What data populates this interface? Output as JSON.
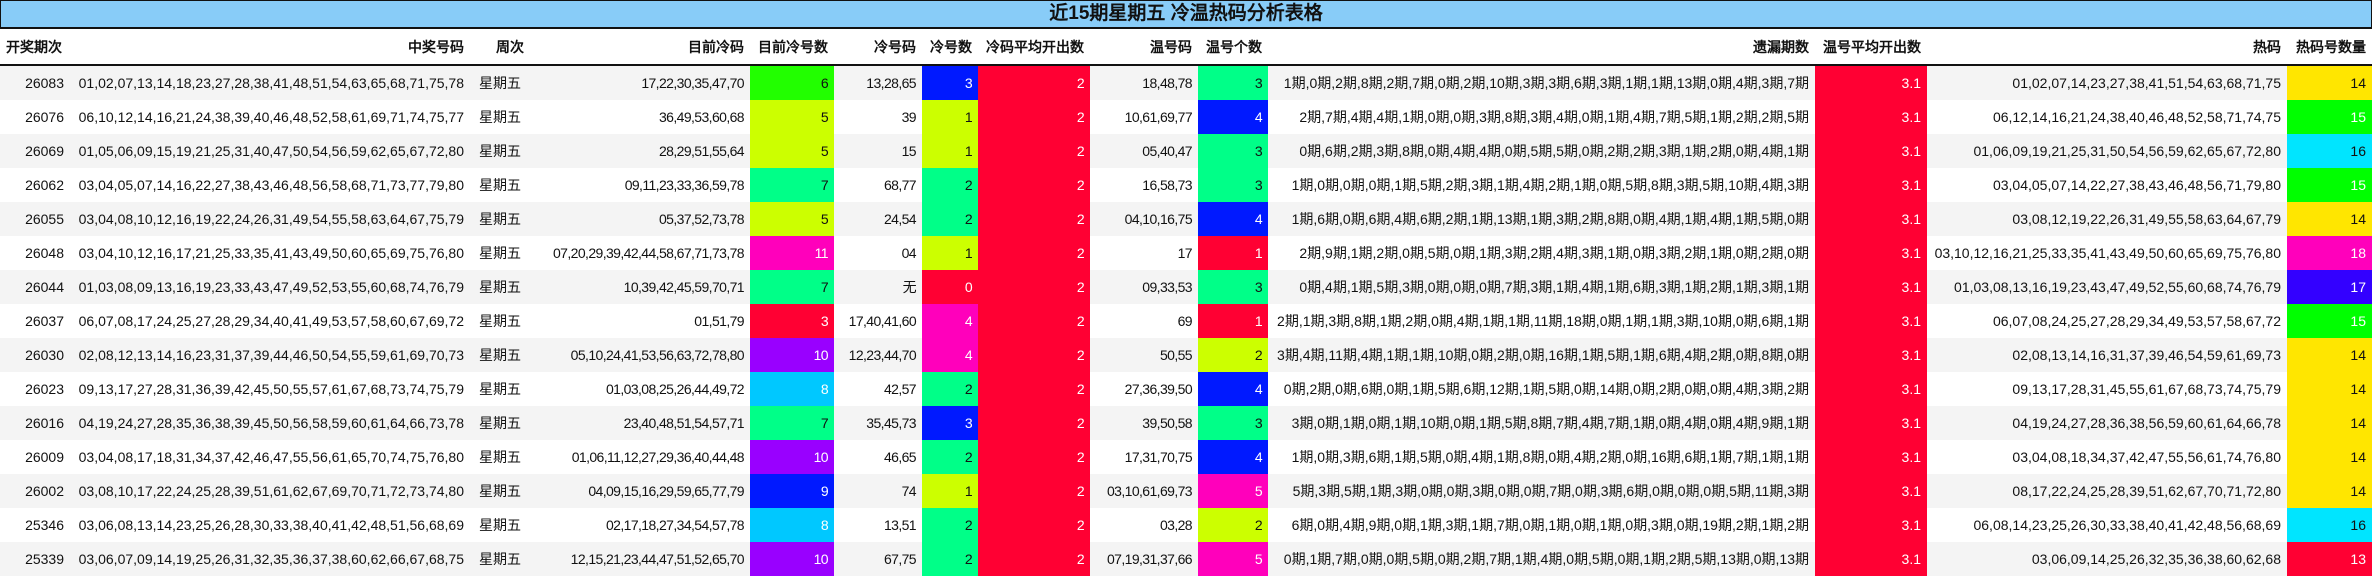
{
  "title": "近15期星期五 冷温热码分析表格",
  "headers": [
    "开奖期次",
    "中奖号码",
    "周次",
    "目前冷码",
    "目前冷号数",
    "冷号码",
    "冷号数",
    "冷码平均开出数",
    "温号码",
    "温号个数",
    "遗漏期数",
    "温号平均开出数",
    "热码",
    "热码号数量"
  ],
  "colors": {
    "cold_now_count": {
      "3": "#ff0033",
      "5": "#ccff00",
      "6": "#22ff00",
      "7": "#00ff88",
      "8": "#00c8ff",
      "9": "#0019ff",
      "10": "#9900ff",
      "11": "#ff00bb"
    },
    "cold_count": {
      "0": "#ff0033",
      "1": "#ccff00",
      "2": "#00ff88",
      "3": "#0019ff",
      "4": "#ff00bb"
    },
    "cold_avg": "#ff0033",
    "warm_count": {
      "1": "#ff0033",
      "2": "#ccff00",
      "3": "#00ff88",
      "4": "#0019ff",
      "5": "#ff00bb"
    },
    "warm_avg": "#ff0033",
    "hot_count": {
      "13": "#ff0033",
      "14": "#ffe600",
      "15": "#00ff00",
      "16": "#00e5ff",
      "17": "#3300ff",
      "18": "#ff00bb"
    },
    "title_bg": "#88ccf8"
  },
  "rows": [
    {
      "issue": "26083",
      "numbers": "01,02,07,13,14,18,23,27,28,38,41,48,51,54,63,65,68,71,75,78",
      "weekday": "星期五",
      "cold_now": "17,22,30,35,47,70",
      "cold_now_count": "6",
      "cold": "13,28,65",
      "cold_count": "3",
      "cold_avg": "2",
      "warm": "18,48,78",
      "warm_count": "3",
      "missing": "1期,0期,2期,8期,2期,7期,0期,2期,10期,3期,3期,6期,3期,1期,1期,13期,0期,4期,3期,7期",
      "warm_avg": "3.1",
      "hot": "01,02,07,14,23,27,38,41,51,54,63,68,71,75",
      "hot_count": "14"
    },
    {
      "issue": "26076",
      "numbers": "06,10,12,14,16,21,24,38,39,40,46,48,52,58,61,69,71,74,75,77",
      "weekday": "星期五",
      "cold_now": "36,49,53,60,68",
      "cold_now_count": "5",
      "cold": "39",
      "cold_count": "1",
      "cold_avg": "2",
      "warm": "10,61,69,77",
      "warm_count": "4",
      "missing": "2期,7期,4期,4期,1期,0期,0期,3期,8期,3期,4期,0期,1期,4期,7期,5期,1期,2期,2期,5期",
      "warm_avg": "3.1",
      "hot": "06,12,14,16,21,24,38,40,46,48,52,58,71,74,75",
      "hot_count": "15"
    },
    {
      "issue": "26069",
      "numbers": "01,05,06,09,15,19,21,25,31,40,47,50,54,56,59,62,65,67,72,80",
      "weekday": "星期五",
      "cold_now": "28,29,51,55,64",
      "cold_now_count": "5",
      "cold": "15",
      "cold_count": "1",
      "cold_avg": "2",
      "warm": "05,40,47",
      "warm_count": "3",
      "missing": "0期,6期,2期,3期,8期,0期,4期,4期,0期,5期,5期,0期,2期,2期,3期,1期,2期,0期,4期,1期",
      "warm_avg": "3.1",
      "hot": "01,06,09,19,21,25,31,50,54,56,59,62,65,67,72,80",
      "hot_count": "16"
    },
    {
      "issue": "26062",
      "numbers": "03,04,05,07,14,16,22,27,38,43,46,48,56,58,68,71,73,77,79,80",
      "weekday": "星期五",
      "cold_now": "09,11,23,33,36,59,78",
      "cold_now_count": "7",
      "cold": "68,77",
      "cold_count": "2",
      "cold_avg": "2",
      "warm": "16,58,73",
      "warm_count": "3",
      "missing": "1期,0期,0期,0期,1期,5期,2期,3期,1期,4期,2期,1期,0期,5期,8期,3期,5期,10期,4期,3期",
      "warm_avg": "3.1",
      "hot": "03,04,05,07,14,22,27,38,43,46,48,56,71,79,80",
      "hot_count": "15"
    },
    {
      "issue": "26055",
      "numbers": "03,04,08,10,12,16,19,22,24,26,31,49,54,55,58,63,64,67,75,79",
      "weekday": "星期五",
      "cold_now": "05,37,52,73,78",
      "cold_now_count": "5",
      "cold": "24,54",
      "cold_count": "2",
      "cold_avg": "2",
      "warm": "04,10,16,75",
      "warm_count": "4",
      "missing": "1期,6期,0期,6期,4期,6期,2期,1期,13期,1期,3期,2期,8期,0期,4期,1期,4期,1期,5期,0期",
      "warm_avg": "3.1",
      "hot": "03,08,12,19,22,26,31,49,55,58,63,64,67,79",
      "hot_count": "14"
    },
    {
      "issue": "26048",
      "numbers": "03,04,10,12,16,17,21,25,33,35,41,43,49,50,60,65,69,75,76,80",
      "weekday": "星期五",
      "cold_now": "07,20,29,39,42,44,58,67,71,73,78",
      "cold_now_count": "11",
      "cold": "04",
      "cold_count": "1",
      "cold_avg": "2",
      "warm": "17",
      "warm_count": "1",
      "missing": "2期,9期,1期,2期,0期,5期,0期,1期,3期,2期,4期,3期,1期,0期,3期,2期,1期,0期,2期,0期",
      "warm_avg": "3.1",
      "hot": "03,10,12,16,21,25,33,35,41,43,49,50,60,65,69,75,76,80",
      "hot_count": "18"
    },
    {
      "issue": "26044",
      "numbers": "01,03,08,09,13,16,19,23,33,43,47,49,52,53,55,60,68,74,76,79",
      "weekday": "星期五",
      "cold_now": "10,39,42,45,59,70,71",
      "cold_now_count": "7",
      "cold": "无",
      "cold_count": "0",
      "cold_avg": "2",
      "warm": "09,33,53",
      "warm_count": "3",
      "missing": "0期,4期,1期,5期,3期,0期,0期,0期,7期,3期,1期,4期,1期,6期,3期,1期,2期,1期,3期,1期",
      "warm_avg": "3.1",
      "hot": "01,03,08,13,16,19,23,43,47,49,52,55,60,68,74,76,79",
      "hot_count": "17"
    },
    {
      "issue": "26037",
      "numbers": "06,07,08,17,24,25,27,28,29,34,40,41,49,53,57,58,60,67,69,72",
      "weekday": "星期五",
      "cold_now": "01,51,79",
      "cold_now_count": "3",
      "cold": "17,40,41,60",
      "cold_count": "4",
      "cold_avg": "2",
      "warm": "69",
      "warm_count": "1",
      "missing": "2期,1期,3期,8期,1期,2期,0期,4期,1期,1期,11期,18期,0期,1期,1期,3期,10期,0期,6期,1期",
      "warm_avg": "3.1",
      "hot": "06,07,08,24,25,27,28,29,34,49,53,57,58,67,72",
      "hot_count": "15"
    },
    {
      "issue": "26030",
      "numbers": "02,08,12,13,14,16,23,31,37,39,44,46,50,54,55,59,61,69,70,73",
      "weekday": "星期五",
      "cold_now": "05,10,24,41,53,56,63,72,78,80",
      "cold_now_count": "10",
      "cold": "12,23,44,70",
      "cold_count": "4",
      "cold_avg": "2",
      "warm": "50,55",
      "warm_count": "2",
      "missing": "3期,4期,11期,4期,1期,1期,10期,0期,2期,0期,16期,1期,5期,1期,6期,4期,2期,0期,8期,0期",
      "warm_avg": "3.1",
      "hot": "02,08,13,14,16,31,37,39,46,54,59,61,69,73",
      "hot_count": "14"
    },
    {
      "issue": "26023",
      "numbers": "09,13,17,27,28,31,36,39,42,45,50,55,57,61,67,68,73,74,75,79",
      "weekday": "星期五",
      "cold_now": "01,03,08,25,26,44,49,72",
      "cold_now_count": "8",
      "cold": "42,57",
      "cold_count": "2",
      "cold_avg": "2",
      "warm": "27,36,39,50",
      "warm_count": "4",
      "missing": "0期,2期,0期,6期,0期,1期,5期,6期,12期,1期,5期,0期,14期,0期,2期,0期,0期,4期,3期,2期",
      "warm_avg": "3.1",
      "hot": "09,13,17,28,31,45,55,61,67,68,73,74,75,79",
      "hot_count": "14"
    },
    {
      "issue": "26016",
      "numbers": "04,19,24,27,28,35,36,38,39,45,50,56,58,59,60,61,64,66,73,78",
      "weekday": "星期五",
      "cold_now": "23,40,48,51,54,57,71",
      "cold_now_count": "7",
      "cold": "35,45,73",
      "cold_count": "3",
      "cold_avg": "2",
      "warm": "39,50,58",
      "warm_count": "3",
      "missing": "3期,0期,1期,0期,1期,10期,0期,1期,5期,8期,7期,4期,7期,1期,0期,4期,0期,4期,9期,1期",
      "warm_avg": "3.1",
      "hot": "04,19,24,27,28,36,38,56,59,60,61,64,66,78",
      "hot_count": "14"
    },
    {
      "issue": "26009",
      "numbers": "03,04,08,17,18,31,34,37,42,46,47,55,56,61,65,70,74,75,76,80",
      "weekday": "星期五",
      "cold_now": "01,06,11,12,27,29,36,40,44,48",
      "cold_now_count": "10",
      "cold": "46,65",
      "cold_count": "2",
      "cold_avg": "2",
      "warm": "17,31,70,75",
      "warm_count": "4",
      "missing": "1期,0期,3期,6期,1期,5期,0期,4期,1期,8期,0期,4期,2期,0期,16期,6期,1期,7期,1期,1期",
      "warm_avg": "3.1",
      "hot": "03,04,08,18,34,37,42,47,55,56,61,74,76,80",
      "hot_count": "14"
    },
    {
      "issue": "26002",
      "numbers": "03,08,10,17,22,24,25,28,39,51,61,62,67,69,70,71,72,73,74,80",
      "weekday": "星期五",
      "cold_now": "04,09,15,16,29,59,65,77,79",
      "cold_now_count": "9",
      "cold": "74",
      "cold_count": "1",
      "cold_avg": "2",
      "warm": "03,10,61,69,73",
      "warm_count": "5",
      "missing": "5期,3期,5期,1期,3期,0期,0期,3期,0期,0期,7期,0期,3期,6期,0期,0期,0期,5期,11期,3期",
      "warm_avg": "3.1",
      "hot": "08,17,22,24,25,28,39,51,62,67,70,71,72,80",
      "hot_count": "14"
    },
    {
      "issue": "25346",
      "numbers": "03,06,08,13,14,23,25,26,28,30,33,38,40,41,42,48,51,56,68,69",
      "weekday": "星期五",
      "cold_now": "02,17,18,27,34,54,57,78",
      "cold_now_count": "8",
      "cold": "13,51",
      "cold_count": "2",
      "cold_avg": "2",
      "warm": "03,28",
      "warm_count": "2",
      "missing": "6期,0期,4期,9期,0期,1期,3期,1期,7期,0期,1期,0期,1期,0期,3期,0期,19期,2期,1期,2期",
      "warm_avg": "3.1",
      "hot": "06,08,14,23,25,26,30,33,38,40,41,42,48,56,68,69",
      "hot_count": "16"
    },
    {
      "issue": "25339",
      "numbers": "03,06,07,09,14,19,25,26,31,32,35,36,37,38,60,62,66,67,68,75",
      "weekday": "星期五",
      "cold_now": "12,15,21,23,44,47,51,52,65,70",
      "cold_now_count": "10",
      "cold": "67,75",
      "cold_count": "2",
      "cold_avg": "2",
      "warm": "07,19,31,37,66",
      "warm_count": "5",
      "missing": "0期,1期,7期,0期,0期,5期,0期,2期,7期,1期,4期,0期,5期,0期,1期,2期,5期,13期,0期,13期",
      "warm_avg": "3.1",
      "hot": "03,06,09,14,25,26,32,35,36,38,60,62,68",
      "hot_count": "13"
    }
  ]
}
